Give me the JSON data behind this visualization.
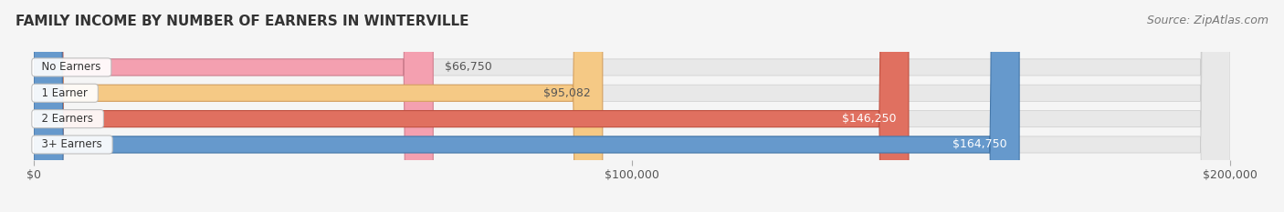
{
  "title": "FAMILY INCOME BY NUMBER OF EARNERS IN WINTERVILLE",
  "source": "Source: ZipAtlas.com",
  "categories": [
    "No Earners",
    "1 Earner",
    "2 Earners",
    "3+ Earners"
  ],
  "values": [
    66750,
    95082,
    146250,
    164750
  ],
  "bar_colors": [
    "#f4a0b0",
    "#f5c985",
    "#e07060",
    "#6699cc"
  ],
  "bar_edge_colors": [
    "#d08090",
    "#d4a060",
    "#c05040",
    "#4477aa"
  ],
  "label_colors": [
    "#555555",
    "#555555",
    "#ffffff",
    "#ffffff"
  ],
  "x_max": 200000,
  "x_ticks": [
    0,
    100000,
    200000
  ],
  "x_tick_labels": [
    "$0",
    "$100,000",
    "$200,000"
  ],
  "bg_color": "#f5f5f5",
  "bar_bg_color": "#e8e8e8",
  "title_fontsize": 11,
  "source_fontsize": 9,
  "tick_fontsize": 9,
  "label_fontsize": 9,
  "cat_fontsize": 8.5
}
